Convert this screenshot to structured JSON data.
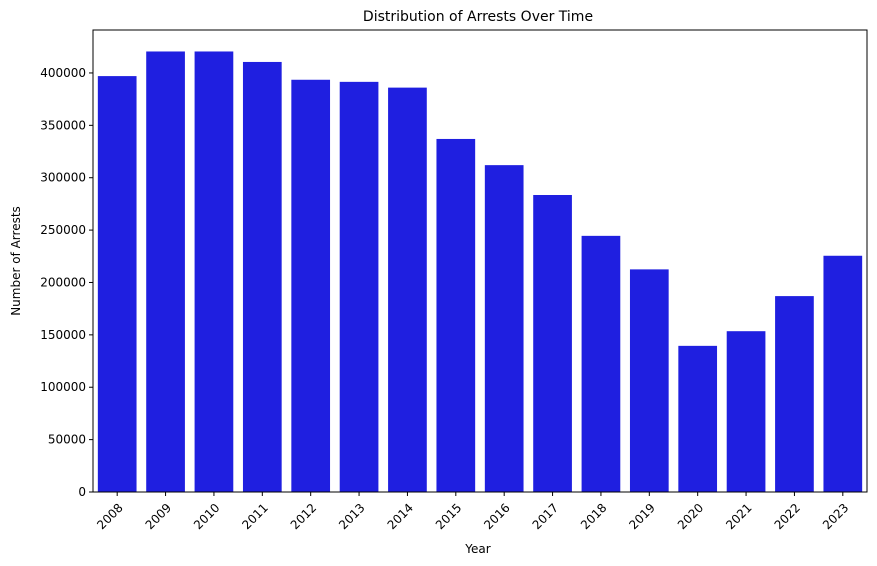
{
  "chart_data": {
    "type": "bar",
    "title": "Distribution of Arrests Over Time",
    "xlabel": "Year",
    "ylabel": "Number of Arrests",
    "categories": [
      "2008",
      "2009",
      "2010",
      "2011",
      "2012",
      "2013",
      "2014",
      "2015",
      "2016",
      "2017",
      "2018",
      "2019",
      "2020",
      "2021",
      "2022",
      "2023"
    ],
    "values": [
      397000,
      420500,
      420500,
      410500,
      393500,
      391500,
      386000,
      337000,
      312000,
      283500,
      244500,
      212500,
      139500,
      153500,
      187000,
      225500
    ],
    "ylim": [
      0,
      441000
    ],
    "yticks": [
      0,
      50000,
      100000,
      150000,
      200000,
      250000,
      300000,
      350000,
      400000
    ],
    "ytick_labels": [
      "0",
      "50000",
      "100000",
      "150000",
      "200000",
      "250000",
      "300000",
      "350000",
      "400000"
    ],
    "xtick_rotation": 45,
    "bar_color": "#1f1fe0",
    "grid": false,
    "legend": "none"
  }
}
